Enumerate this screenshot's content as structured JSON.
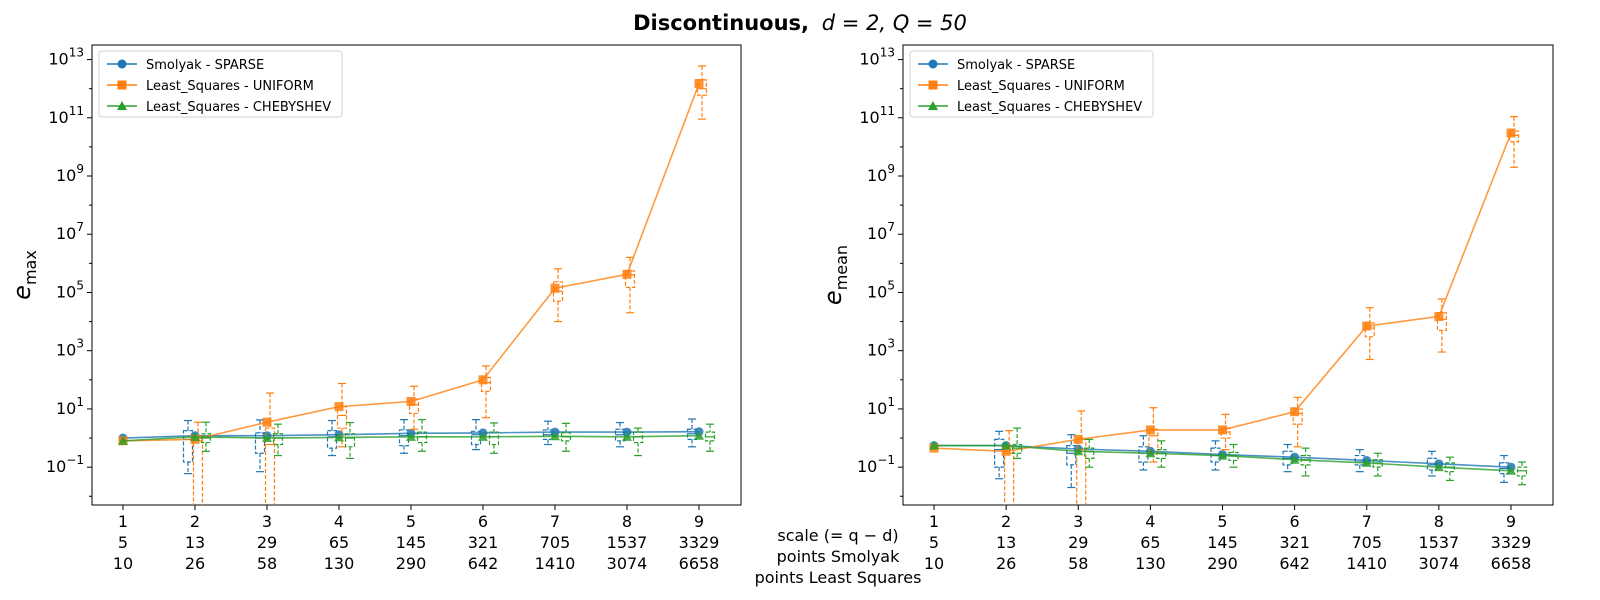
{
  "figure": {
    "title_bold": "Discontinuous,",
    "title_math": "d = 2, Q = 50",
    "bottom_row_labels": [
      "scale (= q − d)",
      "points Smolyak",
      "points Least Squares"
    ]
  },
  "legend": {
    "placement": "top-left",
    "entries": [
      {
        "name": "Smolyak - SPARSE",
        "color": "#1f77b4",
        "marker": "circle"
      },
      {
        "name": "Least_Squares - UNIFORM",
        "color": "#ff7f0e",
        "marker": "square"
      },
      {
        "name": "Least_Squares - CHEBYSHEV",
        "color": "#2ca02c",
        "marker": "triangle"
      }
    ]
  },
  "chart_data": [
    {
      "type": "line",
      "ylabel": "e_max",
      "ylabel_main": "e",
      "ylabel_sub": "max",
      "yscale": "log",
      "ylim_exp": [
        -2.3,
        13.5
      ],
      "ytick_exps": [
        -1,
        1,
        3,
        5,
        7,
        9,
        11,
        13
      ],
      "categories": {
        "scale": [
          "1",
          "2",
          "3",
          "4",
          "5",
          "6",
          "7",
          "8",
          "9"
        ],
        "points_smolyak": [
          "5",
          "13",
          "29",
          "65",
          "145",
          "321",
          "705",
          "1537",
          "3329"
        ],
        "points_least_squares": [
          "10",
          "26",
          "58",
          "130",
          "290",
          "642",
          "1410",
          "3074",
          "6658"
        ]
      },
      "series": [
        {
          "name": "Smolyak - SPARSE",
          "color": "#1f77b4",
          "values": [
            1.0,
            1.2,
            1.2,
            1.3,
            1.45,
            1.5,
            1.6,
            1.6,
            1.65
          ],
          "boxes": {
            "box_lo": [
              null,
              0.15,
              0.3,
              0.45,
              0.55,
              0.6,
              0.9,
              0.8,
              0.9
            ],
            "box_hi": [
              null,
              1.8,
              1.5,
              1.8,
              1.9,
              1.7,
              1.9,
              2.0,
              2.0
            ],
            "median": [
              null,
              0.9,
              1.0,
              1.1,
              1.2,
              1.3,
              1.3,
              1.3,
              1.4
            ],
            "whisk_lo": [
              null,
              0.06,
              0.07,
              0.25,
              0.3,
              0.4,
              0.6,
              0.5,
              0.5
            ],
            "whisk_hi": [
              null,
              4.0,
              4.2,
              4.0,
              4.3,
              4.3,
              3.8,
              3.4,
              4.5
            ]
          }
        },
        {
          "name": "Least_Squares - UNIFORM",
          "color": "#ff7f0e",
          "values": [
            0.8,
            0.9,
            3.5,
            12,
            18,
            100,
            140000,
            420000,
            1500000000000.0
          ],
          "boxes": {
            "box_lo": [
              null,
              0.001,
              0.001,
              2.2,
              7,
              40,
              50000,
              150000,
              600000000000.0
            ],
            "box_hi": [
              null,
              1.2,
              2.2,
              12,
              22,
              120,
              230000,
              550000,
              2000000000000.0
            ],
            "median": [
              null,
              0.8,
              0.6,
              6,
              14,
              80,
              110000,
              400000,
              1000000000000.0
            ],
            "whisk_lo": [
              null,
              0.001,
              0.001,
              0.5,
              2,
              5,
              10000,
              20000,
              90000000000.0
            ],
            "whisk_hi": [
              null,
              3.5,
              35,
              75,
              60,
              300,
              650000,
              1600000.0,
              6000000000000.0
            ]
          }
        },
        {
          "name": "Least_Squares - CHEBYSHEV",
          "color": "#2ca02c",
          "values": [
            0.8,
            1.1,
            1.0,
            1.05,
            1.1,
            1.1,
            1.15,
            1.1,
            1.2
          ],
          "boxes": {
            "box_lo": [
              null,
              0.7,
              0.6,
              0.5,
              0.7,
              0.6,
              0.8,
              0.7,
              0.8
            ],
            "box_hi": [
              null,
              1.4,
              1.4,
              1.4,
              1.6,
              1.6,
              1.5,
              1.6,
              1.6
            ],
            "median": [
              null,
              1.0,
              1.0,
              1.0,
              1.1,
              1.1,
              1.1,
              1.1,
              1.1
            ],
            "whisk_lo": [
              null,
              0.35,
              0.25,
              0.2,
              0.35,
              0.3,
              0.35,
              0.25,
              0.35
            ],
            "whisk_hi": [
              null,
              3.5,
              3.0,
              3.4,
              4.3,
              3.3,
              3.2,
              2.2,
              3.0
            ]
          }
        }
      ]
    },
    {
      "type": "line",
      "ylabel": "e_mean",
      "ylabel_main": "e",
      "ylabel_sub": "mean",
      "yscale": "log",
      "ylim_exp": [
        -2.3,
        13.5
      ],
      "ytick_exps": [
        -1,
        1,
        3,
        5,
        7,
        9,
        11,
        13
      ],
      "categories": {
        "scale": [
          "1",
          "2",
          "3",
          "4",
          "5",
          "6",
          "7",
          "8",
          "9"
        ],
        "points_smolyak": [
          "5",
          "13",
          "29",
          "65",
          "145",
          "321",
          "705",
          "1537",
          "3329"
        ],
        "points_least_squares": [
          "10",
          "26",
          "58",
          "130",
          "290",
          "642",
          "1410",
          "3074",
          "6658"
        ]
      },
      "series": [
        {
          "name": "Smolyak - SPARSE",
          "color": "#1f77b4",
          "values": [
            0.55,
            0.55,
            0.42,
            0.35,
            0.27,
            0.22,
            0.17,
            0.13,
            0.1
          ],
          "boxes": {
            "box_lo": [
              null,
              0.1,
              0.12,
              0.15,
              0.15,
              0.12,
              0.12,
              0.08,
              0.06
            ],
            "box_hi": [
              null,
              0.9,
              0.55,
              0.5,
              0.45,
              0.35,
              0.25,
              0.2,
              0.14
            ],
            "median": [
              null,
              0.4,
              0.3,
              0.3,
              0.25,
              0.2,
              0.15,
              0.12,
              0.09
            ],
            "whisk_lo": [
              null,
              0.04,
              0.02,
              0.08,
              0.08,
              0.07,
              0.07,
              0.05,
              0.03
            ],
            "whisk_hi": [
              null,
              1.7,
              1.3,
              1.2,
              0.8,
              0.6,
              0.4,
              0.35,
              0.25
            ]
          }
        },
        {
          "name": "Least_Squares - UNIFORM",
          "color": "#ff7f0e",
          "values": [
            0.45,
            0.35,
            0.9,
            1.9,
            1.9,
            8,
            7000,
            15000,
            30000000000.0
          ],
          "boxes": {
            "box_lo": [
              null,
              0.001,
              0.001,
              0.3,
              1.0,
              3,
              3000,
              5000,
              15000000000.0
            ],
            "box_hi": [
              null,
              0.5,
              0.9,
              2.0,
              2.2,
              10,
              9000,
              20000,
              35000000000.0
            ],
            "median": [
              null,
              0.3,
              0.4,
              1.2,
              1.6,
              7,
              6000,
              12000,
              25000000000.0
            ],
            "whisk_lo": [
              null,
              0.001,
              0.001,
              0.15,
              0.4,
              0.5,
              500,
              900,
              2000000000.0
            ],
            "whisk_hi": [
              null,
              1.8,
              8.5,
              11,
              6.5,
              25,
              30000,
              60000,
              110000000000.0
            ]
          }
        },
        {
          "name": "Least_Squares - CHEBYSHEV",
          "color": "#2ca02c",
          "values": [
            0.55,
            0.55,
            0.35,
            0.3,
            0.25,
            0.18,
            0.14,
            0.1,
            0.075
          ],
          "boxes": {
            "box_lo": [
              null,
              0.3,
              0.2,
              0.2,
              0.17,
              0.12,
              0.1,
              0.07,
              0.05
            ],
            "box_hi": [
              null,
              0.6,
              0.45,
              0.4,
              0.32,
              0.25,
              0.18,
              0.14,
              0.1
            ],
            "median": [
              null,
              0.45,
              0.35,
              0.3,
              0.25,
              0.18,
              0.14,
              0.1,
              0.075
            ],
            "whisk_lo": [
              null,
              0.2,
              0.1,
              0.1,
              0.1,
              0.05,
              0.05,
              0.035,
              0.025
            ],
            "whisk_hi": [
              null,
              2.2,
              0.9,
              0.8,
              0.6,
              0.45,
              0.3,
              0.22,
              0.15
            ]
          }
        }
      ]
    }
  ]
}
